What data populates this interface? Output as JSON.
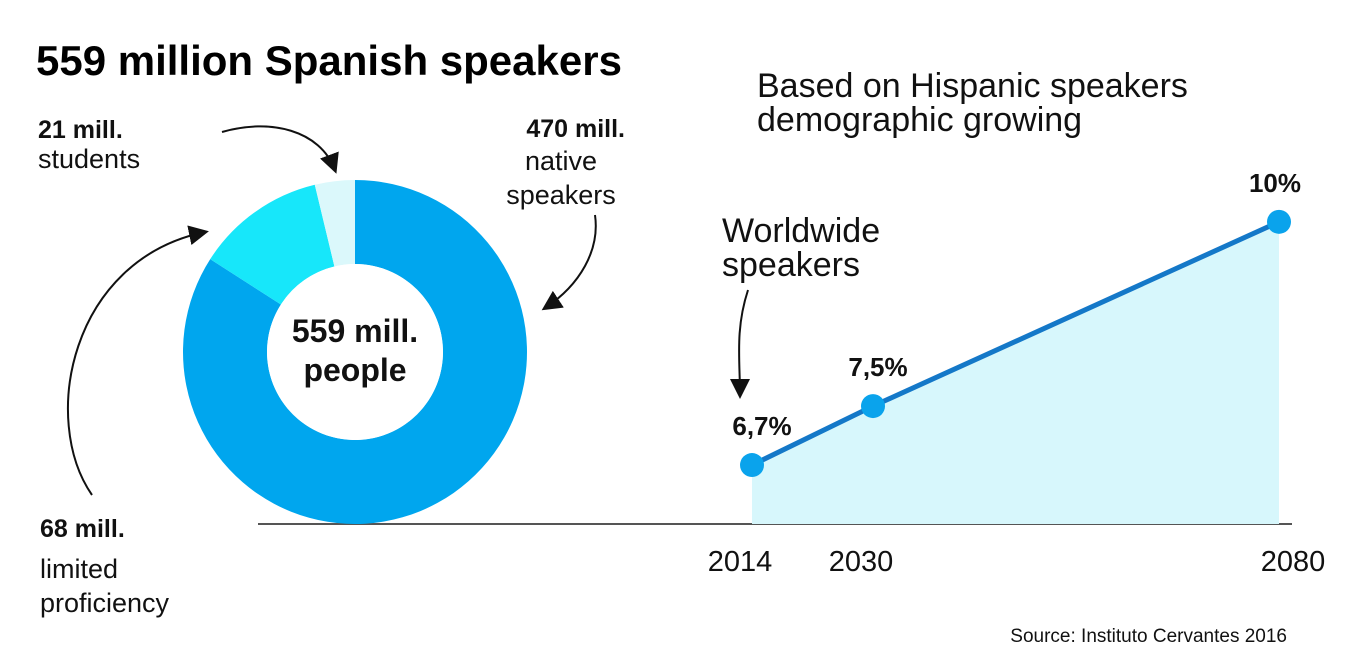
{
  "title": "559 million Spanish speakers",
  "source": "Source: Instituto Cervantes 2016",
  "colors": {
    "native": "#00a6ee",
    "limited": "#17e7fa",
    "students": "#dbf8fb",
    "line": "#1478c8",
    "point": "#0aa3ec",
    "area": "#d7f7fc",
    "axis": "#555555"
  },
  "chart_data": [
    {
      "type": "pie",
      "center_label": [
        "559 mill.",
        "people"
      ],
      "total": 559,
      "slices": [
        {
          "value": 470,
          "label_value": "470 mill.",
          "label_text": [
            "native",
            "speakers"
          ]
        },
        {
          "value": 68,
          "label_value": "68 mill.",
          "label_text": [
            "limited",
            "proficiency"
          ]
        },
        {
          "value": 21,
          "label_value": "21 mill.",
          "label_text": [
            "students"
          ]
        }
      ]
    },
    {
      "type": "area",
      "title": [
        "Based on Hispanic speakers",
        "demographic growing"
      ],
      "annotation": [
        "Worldwide",
        "speakers"
      ],
      "x": [
        2014,
        2030,
        2080
      ],
      "x_labels": [
        "2014",
        "2030",
        "2080"
      ],
      "values": [
        6.7,
        7.5,
        10
      ],
      "value_labels": [
        "6,7%",
        "7,5%",
        "10%"
      ],
      "ylim": [
        5.9,
        10.5
      ]
    }
  ]
}
